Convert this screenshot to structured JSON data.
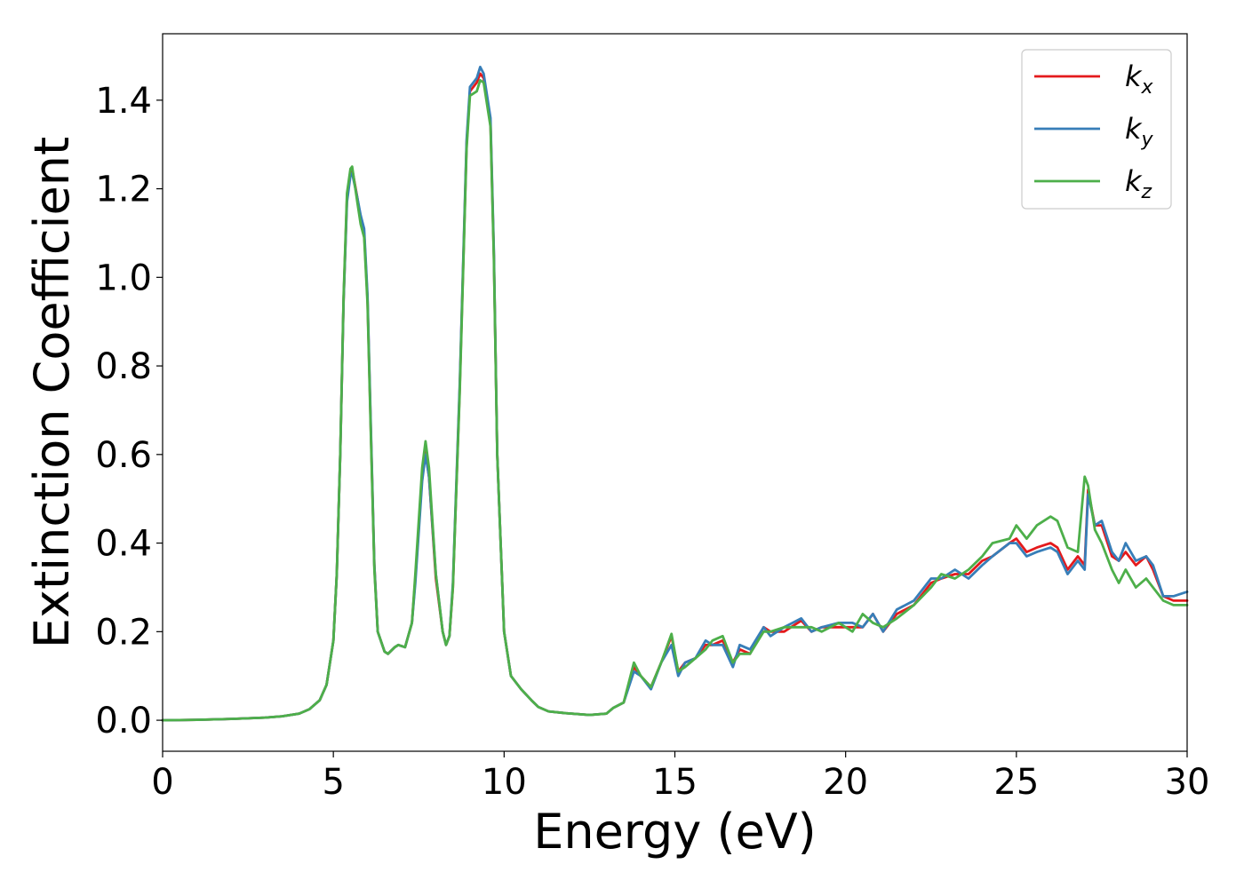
{
  "chart_data": {
    "type": "line",
    "title": "",
    "xlabel": "Energy (eV)",
    "ylabel": "Extinction Coefficient",
    "xlim": [
      0,
      30
    ],
    "ylim": [
      -0.07,
      1.55
    ],
    "xticks": [
      0,
      5,
      10,
      15,
      20,
      25,
      30
    ],
    "yticks": [
      0.0,
      0.2,
      0.4,
      0.6,
      0.8,
      1.0,
      1.2,
      1.4
    ],
    "ytick_labels": [
      "0.0",
      "0.2",
      "0.4",
      "0.6",
      "0.8",
      "1.0",
      "1.2",
      "1.4"
    ],
    "grid": false,
    "legend_position": "top-right",
    "series": [
      {
        "name": "k_x",
        "label_main": "k",
        "label_sub": "x",
        "color": "#e41a1c",
        "x": [
          0,
          1,
          2,
          3,
          3.5,
          4,
          4.3,
          4.6,
          4.8,
          5.0,
          5.1,
          5.2,
          5.3,
          5.4,
          5.5,
          5.55,
          5.7,
          5.8,
          5.9,
          6.0,
          6.1,
          6.2,
          6.3,
          6.5,
          6.6,
          6.8,
          6.9,
          7.1,
          7.3,
          7.4,
          7.6,
          7.7,
          7.8,
          8.0,
          8.2,
          8.3,
          8.4,
          8.5,
          8.7,
          8.9,
          9.0,
          9.2,
          9.3,
          9.4,
          9.6,
          9.7,
          9.8,
          10.0,
          10.2,
          10.5,
          10.8,
          11.0,
          11.3,
          11.8,
          12.5,
          13.0,
          13.2,
          13.5,
          13.8,
          14.0,
          14.3,
          14.6,
          14.9,
          15.1,
          15.3,
          15.6,
          15.9,
          16.1,
          16.4,
          16.7,
          16.9,
          17.2,
          17.6,
          17.8,
          18.2,
          18.7,
          19.0,
          19.3,
          19.8,
          20.2,
          20.5,
          20.8,
          21.1,
          21.5,
          22.0,
          22.5,
          22.8,
          23.2,
          23.6,
          24.0,
          24.3,
          24.8,
          25.0,
          25.3,
          25.6,
          26.0,
          26.2,
          26.5,
          26.8,
          27.0,
          27.1,
          27.3,
          27.5,
          27.8,
          28.0,
          28.2,
          28.5,
          28.8,
          29.0,
          29.3,
          29.6,
          30.0
        ],
        "y": [
          0.0,
          0.001,
          0.003,
          0.006,
          0.009,
          0.015,
          0.025,
          0.045,
          0.08,
          0.18,
          0.33,
          0.6,
          0.95,
          1.18,
          1.24,
          1.245,
          1.18,
          1.13,
          1.1,
          0.95,
          0.65,
          0.35,
          0.2,
          0.155,
          0.15,
          0.165,
          0.17,
          0.165,
          0.22,
          0.32,
          0.55,
          0.605,
          0.55,
          0.32,
          0.2,
          0.17,
          0.19,
          0.3,
          0.75,
          1.3,
          1.42,
          1.44,
          1.46,
          1.45,
          1.35,
          1.05,
          0.6,
          0.2,
          0.1,
          0.07,
          0.045,
          0.03,
          0.02,
          0.016,
          0.012,
          0.015,
          0.028,
          0.04,
          0.12,
          0.1,
          0.075,
          0.13,
          0.19,
          0.11,
          0.13,
          0.14,
          0.17,
          0.17,
          0.18,
          0.13,
          0.16,
          0.15,
          0.21,
          0.2,
          0.2,
          0.225,
          0.2,
          0.21,
          0.21,
          0.21,
          0.21,
          0.24,
          0.2,
          0.24,
          0.26,
          0.31,
          0.32,
          0.33,
          0.33,
          0.36,
          0.37,
          0.4,
          0.41,
          0.38,
          0.39,
          0.4,
          0.39,
          0.34,
          0.37,
          0.35,
          0.52,
          0.44,
          0.44,
          0.37,
          0.36,
          0.38,
          0.35,
          0.37,
          0.34,
          0.28,
          0.27,
          0.27
        ]
      },
      {
        "name": "k_y",
        "label_main": "k",
        "label_sub": "y",
        "color": "#377eb8",
        "x": [
          0,
          1,
          2,
          3,
          3.5,
          4,
          4.3,
          4.6,
          4.8,
          5.0,
          5.1,
          5.2,
          5.3,
          5.4,
          5.5,
          5.55,
          5.7,
          5.8,
          5.9,
          6.0,
          6.1,
          6.2,
          6.3,
          6.5,
          6.6,
          6.8,
          6.9,
          7.1,
          7.3,
          7.4,
          7.6,
          7.7,
          7.8,
          8.0,
          8.2,
          8.3,
          8.4,
          8.5,
          8.7,
          8.9,
          9.0,
          9.2,
          9.3,
          9.4,
          9.6,
          9.7,
          9.8,
          10.0,
          10.2,
          10.5,
          10.8,
          11.0,
          11.3,
          11.8,
          12.5,
          13.0,
          13.2,
          13.5,
          13.8,
          14.0,
          14.3,
          14.6,
          14.9,
          15.1,
          15.3,
          15.6,
          15.9,
          16.1,
          16.4,
          16.7,
          16.9,
          17.2,
          17.6,
          17.8,
          18.2,
          18.7,
          19.0,
          19.3,
          19.8,
          20.2,
          20.5,
          20.8,
          21.1,
          21.5,
          22.0,
          22.5,
          22.8,
          23.2,
          23.6,
          24.0,
          24.3,
          24.8,
          25.0,
          25.3,
          25.6,
          26.0,
          26.2,
          26.5,
          26.8,
          27.0,
          27.1,
          27.3,
          27.5,
          27.8,
          28.0,
          28.2,
          28.5,
          28.8,
          29.0,
          29.3,
          29.6,
          30.0
        ],
        "y": [
          0.0,
          0.001,
          0.003,
          0.006,
          0.009,
          0.015,
          0.025,
          0.045,
          0.08,
          0.18,
          0.33,
          0.6,
          0.95,
          1.17,
          1.23,
          1.235,
          1.18,
          1.14,
          1.11,
          0.96,
          0.66,
          0.35,
          0.2,
          0.155,
          0.15,
          0.165,
          0.17,
          0.165,
          0.22,
          0.31,
          0.54,
          0.6,
          0.55,
          0.33,
          0.2,
          0.17,
          0.19,
          0.31,
          0.76,
          1.31,
          1.43,
          1.45,
          1.475,
          1.46,
          1.36,
          1.06,
          0.6,
          0.2,
          0.1,
          0.07,
          0.045,
          0.03,
          0.02,
          0.016,
          0.012,
          0.015,
          0.028,
          0.04,
          0.11,
          0.1,
          0.07,
          0.13,
          0.17,
          0.1,
          0.13,
          0.14,
          0.18,
          0.17,
          0.17,
          0.12,
          0.17,
          0.16,
          0.21,
          0.19,
          0.21,
          0.23,
          0.2,
          0.21,
          0.22,
          0.22,
          0.21,
          0.24,
          0.2,
          0.25,
          0.27,
          0.32,
          0.32,
          0.34,
          0.32,
          0.35,
          0.37,
          0.4,
          0.4,
          0.37,
          0.38,
          0.39,
          0.38,
          0.33,
          0.36,
          0.34,
          0.51,
          0.44,
          0.45,
          0.38,
          0.36,
          0.4,
          0.36,
          0.37,
          0.35,
          0.28,
          0.28,
          0.29
        ]
      },
      {
        "name": "k_z",
        "label_main": "k",
        "label_sub": "z",
        "color": "#4daf4a",
        "x": [
          0,
          1,
          2,
          3,
          3.5,
          4,
          4.3,
          4.6,
          4.8,
          5.0,
          5.1,
          5.2,
          5.3,
          5.4,
          5.5,
          5.55,
          5.7,
          5.8,
          5.9,
          6.0,
          6.1,
          6.2,
          6.3,
          6.5,
          6.6,
          6.8,
          6.9,
          7.1,
          7.3,
          7.4,
          7.6,
          7.7,
          7.8,
          8.0,
          8.2,
          8.3,
          8.4,
          8.5,
          8.7,
          8.9,
          9.0,
          9.2,
          9.3,
          9.4,
          9.6,
          9.7,
          9.8,
          10.0,
          10.2,
          10.5,
          10.8,
          11.0,
          11.3,
          11.8,
          12.5,
          13.0,
          13.2,
          13.5,
          13.8,
          14.0,
          14.3,
          14.6,
          14.9,
          15.1,
          15.3,
          15.6,
          15.9,
          16.1,
          16.4,
          16.7,
          16.9,
          17.2,
          17.6,
          17.8,
          18.2,
          18.7,
          19.0,
          19.3,
          19.8,
          20.2,
          20.5,
          20.8,
          21.1,
          21.5,
          22.0,
          22.5,
          22.8,
          23.2,
          23.6,
          24.0,
          24.3,
          24.8,
          25.0,
          25.3,
          25.6,
          26.0,
          26.2,
          26.5,
          26.8,
          27.0,
          27.1,
          27.3,
          27.5,
          27.8,
          28.0,
          28.2,
          28.5,
          28.8,
          29.0,
          29.3,
          29.6,
          30.0
        ],
        "y": [
          0.0,
          0.001,
          0.003,
          0.006,
          0.009,
          0.015,
          0.025,
          0.045,
          0.08,
          0.18,
          0.33,
          0.6,
          0.96,
          1.19,
          1.245,
          1.25,
          1.17,
          1.12,
          1.09,
          0.94,
          0.64,
          0.34,
          0.2,
          0.155,
          0.15,
          0.165,
          0.17,
          0.165,
          0.22,
          0.33,
          0.57,
          0.63,
          0.57,
          0.33,
          0.2,
          0.17,
          0.19,
          0.3,
          0.74,
          1.29,
          1.41,
          1.42,
          1.445,
          1.44,
          1.34,
          1.04,
          0.6,
          0.2,
          0.1,
          0.07,
          0.045,
          0.03,
          0.02,
          0.016,
          0.012,
          0.015,
          0.028,
          0.04,
          0.13,
          0.1,
          0.075,
          0.13,
          0.195,
          0.11,
          0.12,
          0.14,
          0.16,
          0.18,
          0.19,
          0.13,
          0.15,
          0.15,
          0.2,
          0.2,
          0.21,
          0.21,
          0.21,
          0.2,
          0.22,
          0.2,
          0.24,
          0.22,
          0.21,
          0.23,
          0.26,
          0.3,
          0.33,
          0.32,
          0.34,
          0.37,
          0.4,
          0.41,
          0.44,
          0.41,
          0.44,
          0.46,
          0.45,
          0.39,
          0.38,
          0.55,
          0.53,
          0.43,
          0.4,
          0.34,
          0.31,
          0.34,
          0.3,
          0.32,
          0.3,
          0.27,
          0.26,
          0.26
        ]
      }
    ]
  }
}
